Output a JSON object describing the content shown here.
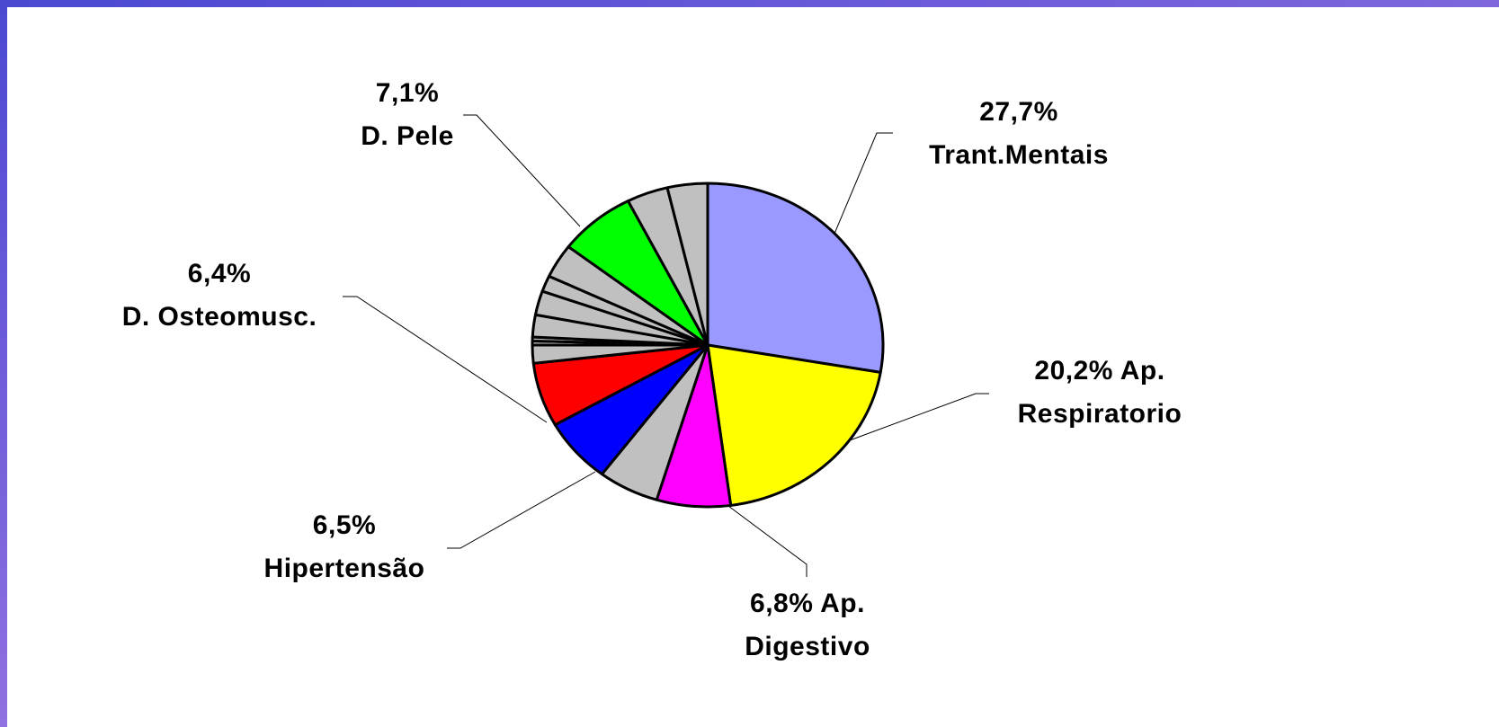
{
  "chart_data": {
    "type": "pie",
    "categories": [
      "Trant.Mentais",
      "Ap. Respiratorio",
      "Ap. Digestivo",
      null,
      "Hipertensão",
      "D. Osteomusc.",
      null,
      null,
      null,
      null,
      null,
      null,
      null,
      "D. Pele",
      null,
      null
    ],
    "values": [
      27.7,
      20.2,
      6.8,
      5.6,
      6.5,
      6.4,
      1.8,
      0.4,
      0.4,
      2.2,
      2.4,
      1.6,
      3.4,
      7.1,
      3.8,
      3.7
    ],
    "value_labels": [
      "27,7%",
      "20,2%",
      "6,8%",
      null,
      "6,5%",
      "6,4%",
      null,
      null,
      null,
      null,
      null,
      null,
      null,
      "7,1%",
      null,
      null
    ],
    "colors": [
      "#9999ff",
      "#ffff00",
      "#ff00ff",
      "#c0c0c0",
      "#0000ff",
      "#ff0000",
      "#c0c0c0",
      "#c0c0c0",
      "#c0c0c0",
      "#c0c0c0",
      "#c0c0c0",
      "#c0c0c0",
      "#c0c0c0",
      "#00ff00",
      "#c0c0c0",
      "#c0c0c0"
    ]
  }
}
